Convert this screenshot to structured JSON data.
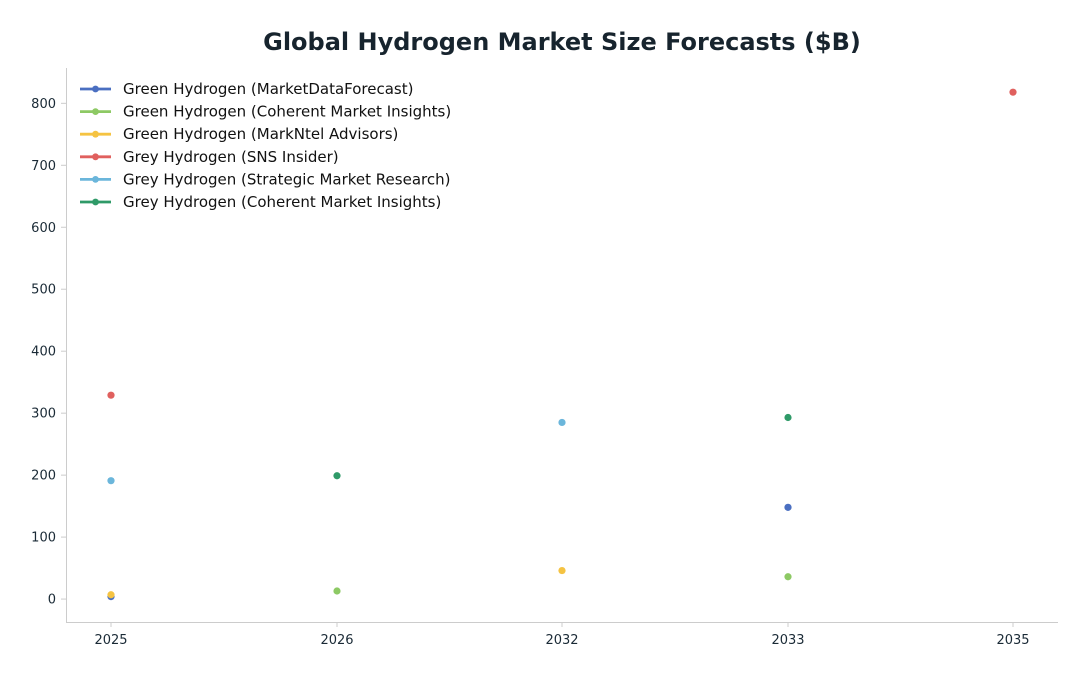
{
  "chart_data": {
    "type": "scatter",
    "title": "Global Hydrogen Market Size Forecasts ($B)",
    "xlabel": "",
    "ylabel": "",
    "categories": [
      "2025",
      "2026",
      "2032",
      "2033",
      "2035"
    ],
    "y_ticks": [
      "0",
      "100",
      "200",
      "300",
      "400",
      "500",
      "600",
      "700",
      "800"
    ],
    "ylim": [
      -37,
      857
    ],
    "grid": false,
    "legend_position": "top-left",
    "series": [
      {
        "name": "Green Hydrogen (MarketDataForecast)",
        "color": "#4a6fc1",
        "points": [
          {
            "x": "2025",
            "y": 4
          },
          {
            "x": "2033",
            "y": 148
          }
        ]
      },
      {
        "name": "Green Hydrogen (Coherent Market Insights)",
        "color": "#8dc964",
        "points": [
          {
            "x": "2026",
            "y": 13
          },
          {
            "x": "2033",
            "y": 36
          }
        ]
      },
      {
        "name": "Green Hydrogen (MarkNtel Advisors)",
        "color": "#f5c342",
        "points": [
          {
            "x": "2025",
            "y": 7
          },
          {
            "x": "2032",
            "y": 46
          }
        ]
      },
      {
        "name": "Grey Hydrogen (SNS Insider)",
        "color": "#e0605e",
        "points": [
          {
            "x": "2025",
            "y": 329
          },
          {
            "x": "2035",
            "y": 818
          }
        ]
      },
      {
        "name": "Grey Hydrogen (Strategic Market Research)",
        "color": "#6bb6db",
        "points": [
          {
            "x": "2025",
            "y": 191
          },
          {
            "x": "2032",
            "y": 285
          }
        ]
      },
      {
        "name": "Grey Hydrogen (Coherent Market Insights)",
        "color": "#2f9a68",
        "points": [
          {
            "x": "2026",
            "y": 199
          },
          {
            "x": "2033",
            "y": 293
          }
        ]
      }
    ]
  }
}
